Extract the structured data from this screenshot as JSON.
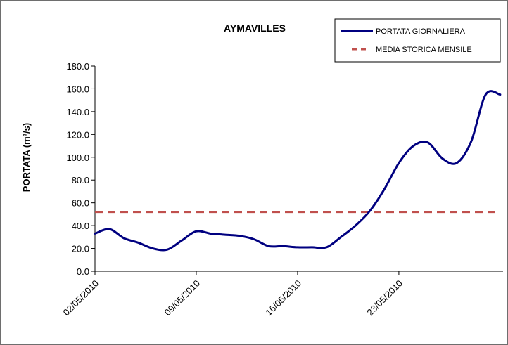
{
  "chart_data": {
    "type": "line",
    "title": "AYMAVILLES",
    "ylabel": "PORTATA (m³/s)",
    "xlabel": "",
    "ylim": [
      0,
      180
    ],
    "y_ticks": [
      "0.0",
      "20.0",
      "40.0",
      "60.0",
      "80.0",
      "100.0",
      "120.0",
      "140.0",
      "160.0",
      "180.0"
    ],
    "x_ticks": [
      "02/05/2010",
      "09/05/2010",
      "16/05/2010",
      "23/05/2010"
    ],
    "x_tick_days": [
      0,
      7,
      14,
      21
    ],
    "grid": false,
    "legend_position": "top-right",
    "series": [
      {
        "name": "PORTATA GIORNALIERA",
        "style": "solid",
        "color": "#000080",
        "x": [
          0,
          1,
          2,
          3,
          4,
          5,
          6,
          7,
          8,
          9,
          10,
          11,
          12,
          13,
          14,
          15,
          16,
          17,
          18,
          19,
          20,
          21,
          22,
          23,
          24,
          25,
          26,
          27,
          28
        ],
        "values": [
          33,
          37,
          29,
          25,
          20,
          19,
          27,
          35,
          33,
          32,
          31,
          28,
          22,
          22,
          21,
          21,
          21,
          30,
          40,
          53,
          72,
          95,
          110,
          113,
          99,
          95,
          114,
          155,
          155
        ]
      },
      {
        "name": "MEDIA STORICA MENSILE",
        "style": "dashed",
        "color": "#c0504d",
        "x": [
          0,
          28
        ],
        "values": [
          52,
          52
        ]
      }
    ]
  }
}
